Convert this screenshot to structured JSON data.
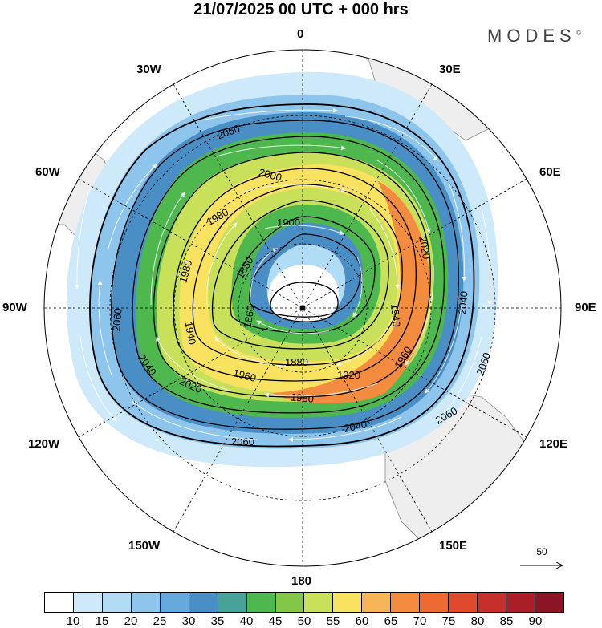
{
  "title": "21/07/2025  00 UTC  + 000 hrs",
  "brand": "MODES",
  "brand_mark": "©",
  "longitude_labels": {
    "n": "0",
    "e30": "30E",
    "e60": "60E",
    "e90": "90E",
    "e120": "120E",
    "e150": "150E",
    "s": "180",
    "w150": "150W",
    "w120": "120W",
    "w90": "90W",
    "w60": "60W",
    "w30": "30W"
  },
  "contour_labels": [
    "2060",
    "2040",
    "2020",
    "2000",
    "1980",
    "1960",
    "1940",
    "1920",
    "1900",
    "1880",
    "1860"
  ],
  "reference_vector": "50",
  "colorbar": {
    "colors": [
      "#ffffff",
      "#cde9fa",
      "#b1dcf5",
      "#8ec5ec",
      "#66a9dc",
      "#4a8ec6",
      "#48a297",
      "#4eb84f",
      "#82c747",
      "#c8e05a",
      "#f9e25f",
      "#f7b557",
      "#f48c3f",
      "#ee6a32",
      "#e04a2c",
      "#c72f2a",
      "#aa1f27",
      "#8b1524"
    ],
    "tick_labels": [
      "10",
      "15",
      "20",
      "25",
      "30",
      "35",
      "40",
      "45",
      "50",
      "55",
      "60",
      "65",
      "70",
      "75",
      "80",
      "85",
      "90"
    ]
  }
}
